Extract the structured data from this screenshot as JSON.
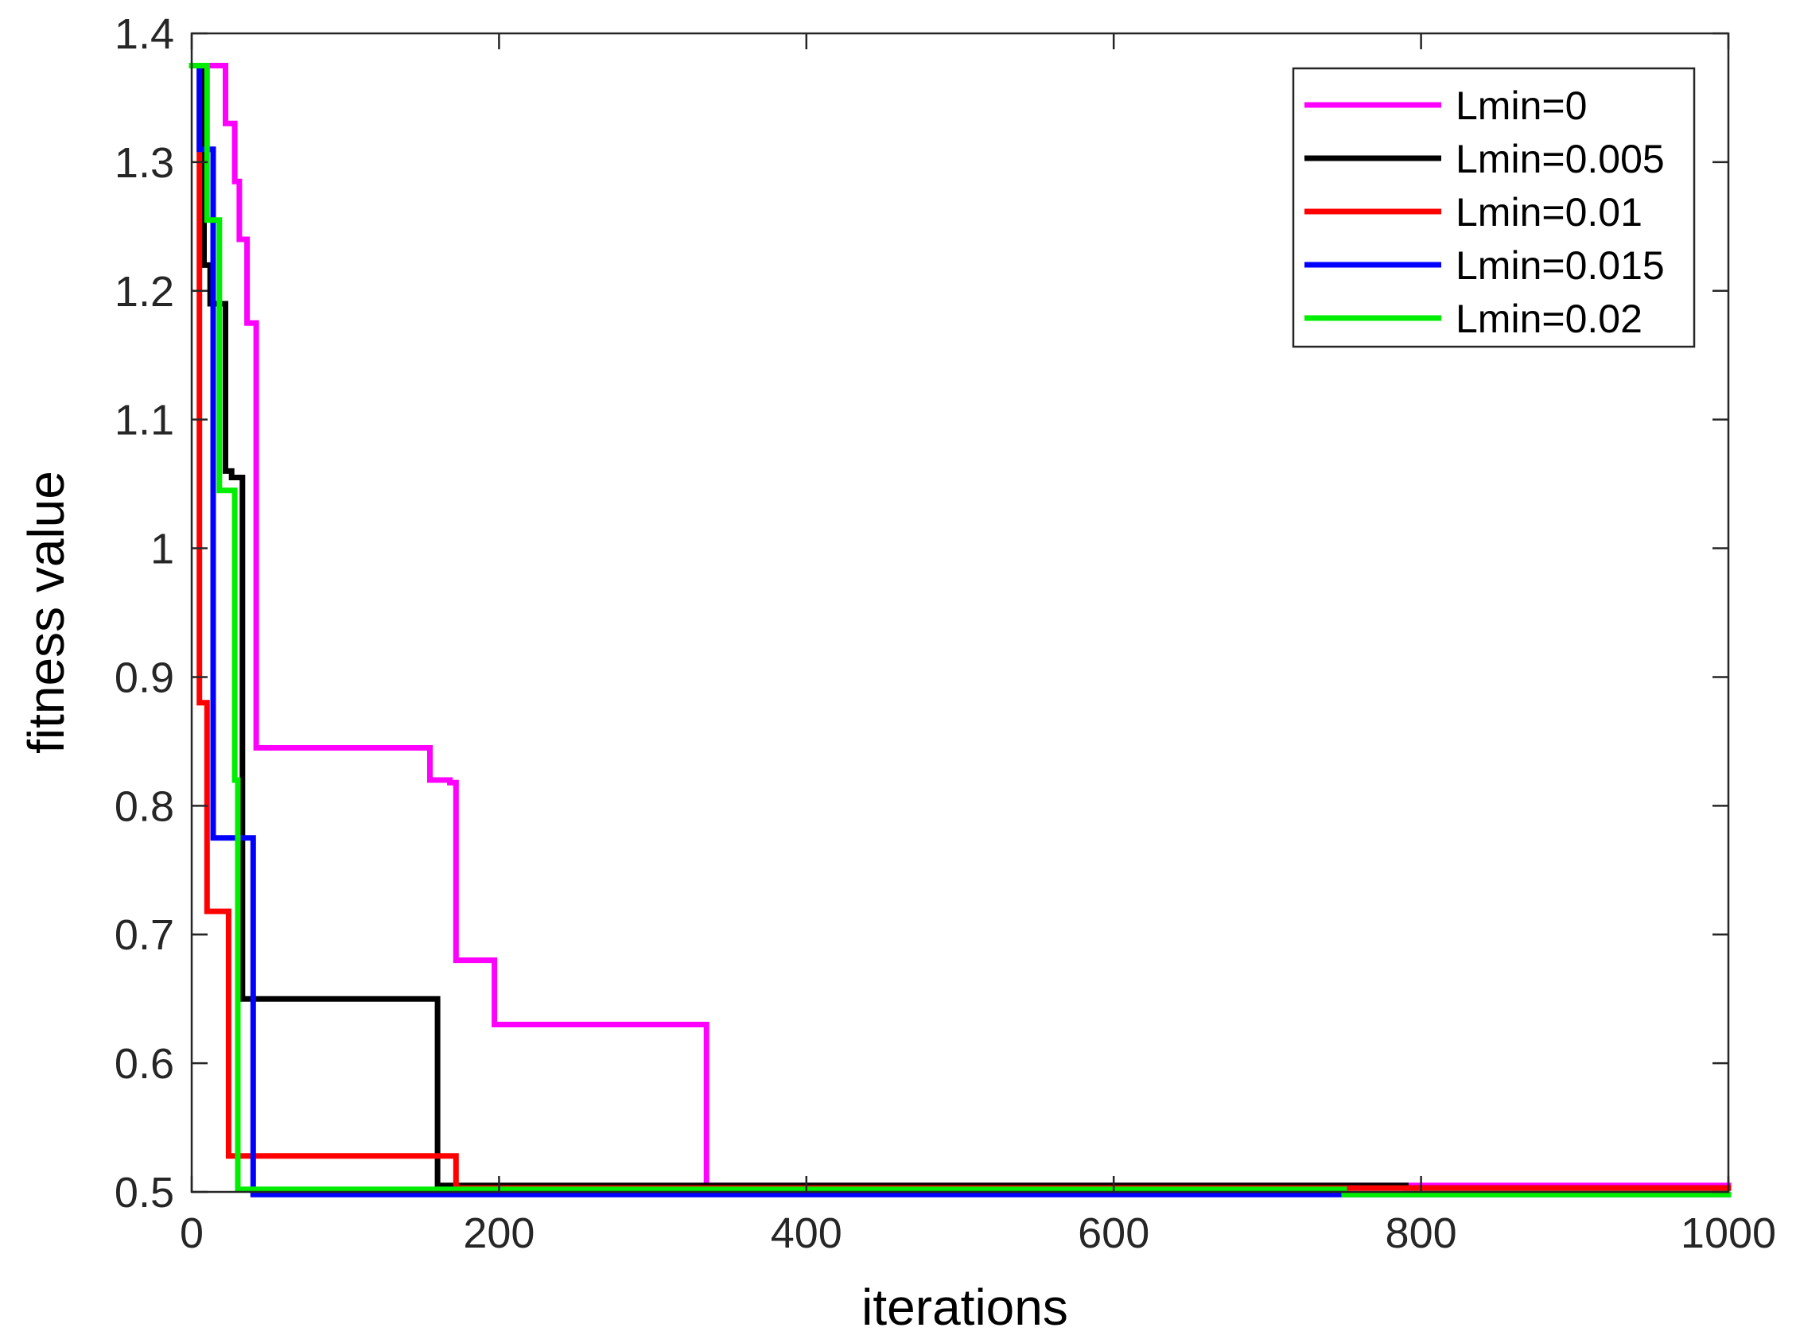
{
  "chart_data": {
    "type": "line",
    "title": "",
    "xlabel": "iterations",
    "ylabel": "fitness value",
    "xlim": [
      0,
      1000
    ],
    "ylim": [
      0.5,
      1.4
    ],
    "xticks": [
      0,
      200,
      400,
      600,
      800,
      1000
    ],
    "xtick_labels": [
      "0",
      "200",
      "400",
      "600",
      "800",
      "1000"
    ],
    "yticks": [
      0.5,
      0.6,
      0.7,
      0.8,
      0.9,
      1.0,
      1.1,
      1.2,
      1.3,
      1.4
    ],
    "ytick_labels": [
      "0.5",
      "0.6",
      "0.7",
      "0.8",
      "0.9",
      "1",
      "1.1",
      "1.2",
      "1.3",
      "1.4"
    ],
    "grid": false,
    "legend_position": "top-right",
    "series": [
      {
        "name": "Lmin=0",
        "color": "#ff00ff",
        "x": [
          0,
          22,
          22,
          28,
          28,
          31,
          31,
          36,
          36,
          42,
          42,
          155,
          155,
          168,
          168,
          172,
          172,
          197,
          197,
          335,
          335,
          1000
        ],
        "y": [
          1.375,
          1.375,
          1.33,
          1.33,
          1.285,
          1.285,
          1.24,
          1.24,
          1.175,
          1.175,
          0.845,
          0.845,
          0.82,
          0.82,
          0.818,
          0.818,
          0.68,
          0.68,
          0.63,
          0.63,
          0.505,
          0.505
        ]
      },
      {
        "name": "Lmin=0.005",
        "color": "#000000",
        "x": [
          0,
          8,
          8,
          12,
          12,
          22,
          22,
          26,
          26,
          33,
          33,
          160,
          160,
          790,
          790,
          1000
        ],
        "y": [
          1.375,
          1.375,
          1.22,
          1.22,
          1.19,
          1.19,
          1.06,
          1.06,
          1.055,
          1.055,
          0.65,
          0.65,
          0.505,
          0.505,
          0.503,
          0.503
        ]
      },
      {
        "name": "Lmin=0.01",
        "color": "#ff0000",
        "x": [
          0,
          5,
          5,
          10,
          10,
          24,
          24,
          172,
          172,
          1000
        ],
        "y": [
          1.375,
          1.375,
          0.88,
          0.88,
          0.718,
          0.718,
          0.528,
          0.528,
          0.503,
          0.503
        ]
      },
      {
        "name": "Lmin=0.015",
        "color": "#0000ff",
        "x": [
          0,
          5,
          5,
          14,
          14,
          40,
          40,
          1000
        ],
        "y": [
          1.375,
          1.375,
          1.31,
          1.31,
          0.775,
          0.775,
          0.498,
          0.498
        ]
      },
      {
        "name": "Lmin=0.02",
        "color": "#00ee00",
        "x": [
          0,
          10,
          10,
          18,
          18,
          28,
          28,
          30,
          30,
          750,
          750,
          1000
        ],
        "y": [
          1.375,
          1.375,
          1.255,
          1.255,
          1.045,
          1.045,
          0.82,
          0.82,
          0.502,
          0.502,
          0.498,
          0.498
        ]
      }
    ]
  }
}
